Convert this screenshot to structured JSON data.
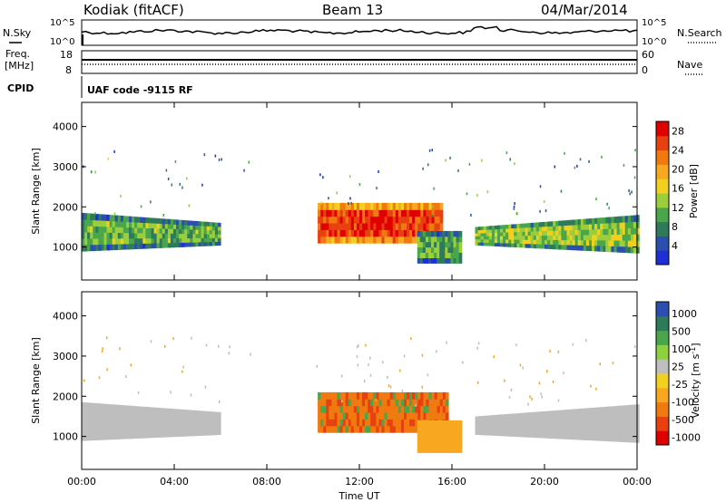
{
  "header": {
    "station": "Kodiak (fitACF)",
    "beam": "Beam 13",
    "date": "04/Mar/2014"
  },
  "top_panel": {
    "left_label": "N.Sky",
    "right_label": "N.Search",
    "ticks_left": [
      "10^5",
      "10^0"
    ],
    "ticks_right": [
      "10^5",
      "10^0"
    ]
  },
  "freq_panel": {
    "left_label_1": "Freq.",
    "left_label_2": "[MHz]",
    "right_label": "Nave",
    "ticks_left": [
      "18",
      "8"
    ],
    "ticks_right": [
      "60",
      "0"
    ],
    "cpid_label": "CPID",
    "cpid_text": "UAF code -9115 RF"
  },
  "colors": {
    "power_scale": [
      "#1f2fd6",
      "#2a4fb0",
      "#2f7a5a",
      "#4aa64a",
      "#9ccd3a",
      "#f2d020",
      "#f7a820",
      "#f07a10",
      "#e84010",
      "#e00000"
    ],
    "velocity_scale": [
      "#2a4fb0",
      "#2f7a5a",
      "#4aa64a",
      "#8fd040",
      "#bebebe",
      "#f2d020",
      "#f7a820",
      "#f07a10",
      "#e84010",
      "#e00000"
    ]
  },
  "chart_data": [
    {
      "type": "heatmap",
      "title": "",
      "quantity": "Power",
      "xlabel": "",
      "ylabel": "Slant Range [km]",
      "ylim": [
        180,
        4600
      ],
      "yticks": [
        "1000",
        "2000",
        "3000",
        "4000"
      ],
      "colorbar_label": "Power [dB]",
      "colorbar_ticks": [
        "4",
        "8",
        "12",
        "16",
        "20",
        "24",
        "28"
      ],
      "colorbar_range": [
        0,
        30
      ],
      "regions": [
        {
          "t_start": 0.0,
          "t_end": 6.0,
          "range_min": 900,
          "range_max": 1850,
          "typical_db": 10
        },
        {
          "t_start": 10.2,
          "t_end": 15.5,
          "range_min": 1100,
          "range_max": 2100,
          "typical_db": 24
        },
        {
          "t_start": 14.5,
          "t_end": 16.3,
          "range_min": 600,
          "range_max": 1400,
          "typical_db": 10
        },
        {
          "t_start": 17.0,
          "t_end": 24.0,
          "range_min": 850,
          "range_max": 1800,
          "typical_db": 12
        }
      ]
    },
    {
      "type": "heatmap",
      "title": "",
      "quantity": "Velocity",
      "xlabel": "Time UT",
      "ylabel": "Slant Range [km]",
      "ylim": [
        180,
        4600
      ],
      "yticks": [
        "1000",
        "2000",
        "3000",
        "4000"
      ],
      "xticks": [
        "00:00",
        "04:00",
        "08:00",
        "12:00",
        "16:00",
        "20:00",
        "00:00"
      ],
      "xlim_hours": [
        0,
        24
      ],
      "colorbar_label": "Velocity [m s",
      "colorbar_label_sup": "-1",
      "colorbar_ticks": [
        "1000",
        "500",
        "100",
        "25",
        "-25",
        "-100",
        "-500",
        "-1000"
      ],
      "regions": [
        {
          "t_start": 0.0,
          "t_end": 6.0,
          "range_min": 900,
          "range_max": 1850,
          "typical_velocity": 0
        },
        {
          "t_start": 10.2,
          "t_end": 15.8,
          "range_min": 1100,
          "range_max": 2100,
          "typical_velocity": -400
        },
        {
          "t_start": 14.5,
          "t_end": 16.3,
          "range_min": 600,
          "range_max": 1400,
          "typical_velocity": -150
        },
        {
          "t_start": 17.0,
          "t_end": 24.0,
          "range_min": 850,
          "range_max": 1800,
          "typical_velocity": 0
        }
      ]
    }
  ]
}
